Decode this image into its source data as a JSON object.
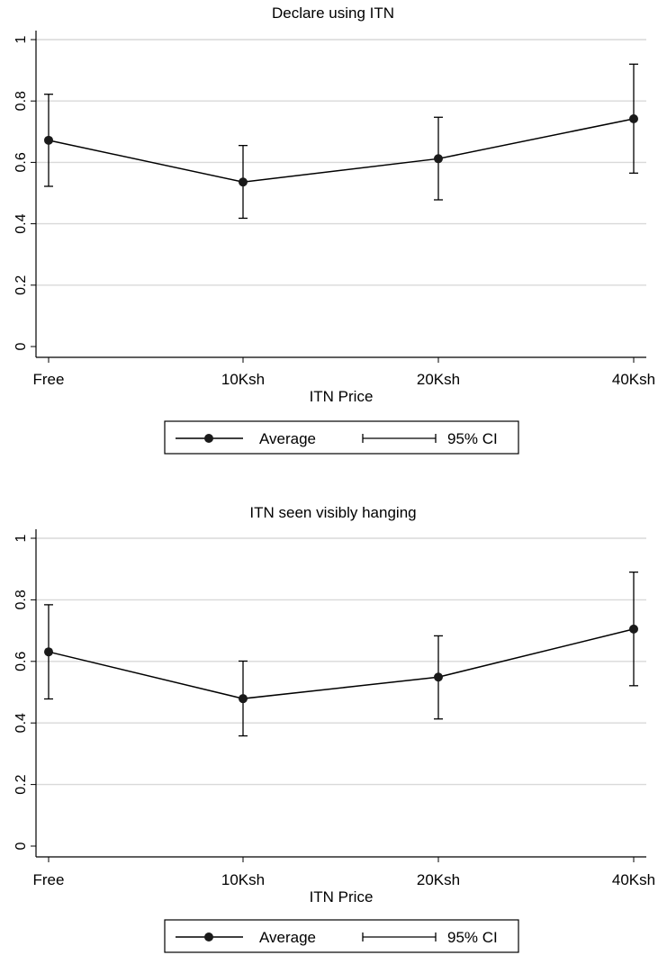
{
  "chart_data": [
    {
      "type": "line",
      "title": "Declare using ITN",
      "xlabel": "ITN Price",
      "ylabel": "",
      "categories": [
        "Free",
        "10Ksh",
        "20Ksh",
        "40Ksh"
      ],
      "ylim": [
        0,
        1
      ],
      "yticks": [
        "0",
        "0.2",
        "0.4",
        "0.6",
        "0.8",
        "1"
      ],
      "grid": true,
      "series": [
        {
          "name": "Average",
          "values": [
            0.672,
            0.536,
            0.612,
            0.742
          ]
        }
      ],
      "ci": {
        "name": "95% CI",
        "lower": [
          0.522,
          0.418,
          0.478,
          0.565
        ],
        "upper": [
          0.822,
          0.655,
          0.747,
          0.92
        ]
      },
      "legend": {
        "position": "bottom",
        "items": [
          "Average",
          "95% CI"
        ]
      }
    },
    {
      "type": "line",
      "title": "ITN seen visibly hanging",
      "xlabel": "ITN Price",
      "ylabel": "",
      "categories": [
        "Free",
        "10Ksh",
        "20Ksh",
        "40Ksh"
      ],
      "ylim": [
        0,
        1
      ],
      "yticks": [
        "0",
        "0.2",
        "0.4",
        "0.6",
        "0.8",
        "1"
      ],
      "grid": true,
      "series": [
        {
          "name": "Average",
          "values": [
            0.631,
            0.479,
            0.549,
            0.705
          ]
        }
      ],
      "ci": {
        "name": "95% CI",
        "lower": [
          0.478,
          0.358,
          0.413,
          0.521
        ],
        "upper": [
          0.784,
          0.601,
          0.683,
          0.89
        ]
      },
      "legend": {
        "position": "bottom",
        "items": [
          "Average",
          "95% CI"
        ]
      }
    }
  ]
}
